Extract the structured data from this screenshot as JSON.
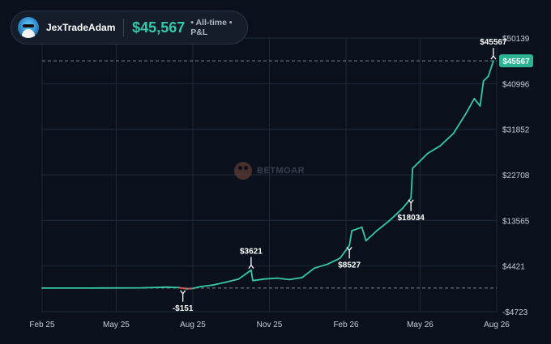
{
  "header": {
    "username": "JexTradeAdam",
    "pnl_value": "$45,567",
    "pnl_label": "• All-time • P&L"
  },
  "watermark": {
    "text": "BETMOAR"
  },
  "colors": {
    "background": "#0b111c",
    "line": "#35c9a8",
    "negative_line": "#d9534f",
    "grid": "#1e2a3a",
    "text": "#c6cdd8",
    "badge": "#2bb394"
  },
  "chart_data": {
    "type": "line",
    "title": "",
    "xlabel": "",
    "ylabel": "",
    "x_ticks": [
      "Feb 25",
      "May 25",
      "Aug 25",
      "Nov 25",
      "Feb 26",
      "May 26",
      "Aug 26"
    ],
    "y_ticks": [
      -4723,
      4421,
      13565,
      22708,
      31852,
      40996,
      50139
    ],
    "ylim": [
      -4723,
      50139
    ],
    "xlim": [
      "2025-02-01",
      "2026-08-01"
    ],
    "grid": true,
    "reference_lines": [
      {
        "label": "zero",
        "value": 0
      },
      {
        "label": "current",
        "value": 45567
      }
    ],
    "current_value_badge": "$45567",
    "annotations": [
      {
        "label": "-$151",
        "x": "2025-07-20",
        "y": -151,
        "direction": "down"
      },
      {
        "label": "$3621",
        "x": "2025-10-10",
        "y": 3621,
        "direction": "up"
      },
      {
        "label": "$8527",
        "x": "2026-02-05",
        "y": 8527,
        "direction": "down"
      },
      {
        "label": "$18034",
        "x": "2026-04-20",
        "y": 18034,
        "direction": "down"
      },
      {
        "label": "$45567",
        "x": "2026-07-28",
        "y": 45567,
        "direction": "up"
      }
    ],
    "series": [
      {
        "points": [
          [
            "2025-02-01",
            0
          ],
          [
            "2025-04-01",
            0
          ],
          [
            "2025-06-01",
            50
          ],
          [
            "2025-07-01",
            200
          ],
          [
            "2025-07-15",
            100
          ],
          [
            "2025-07-25",
            -151
          ],
          [
            "2025-08-01",
            -80
          ],
          [
            "2025-08-10",
            300
          ],
          [
            "2025-08-25",
            600
          ],
          [
            "2025-09-10",
            1200
          ],
          [
            "2025-09-25",
            1800
          ],
          [
            "2025-10-05",
            3000
          ],
          [
            "2025-10-10",
            3621
          ],
          [
            "2025-10-12",
            1500
          ],
          [
            "2025-10-25",
            1800
          ],
          [
            "2025-11-10",
            2000
          ],
          [
            "2025-11-25",
            1700
          ],
          [
            "2025-12-10",
            2100
          ],
          [
            "2025-12-25",
            4000
          ],
          [
            "2026-01-10",
            4800
          ],
          [
            "2026-01-25",
            6000
          ],
          [
            "2026-02-05",
            8527
          ],
          [
            "2026-02-08",
            11500
          ],
          [
            "2026-02-20",
            12200
          ],
          [
            "2026-02-25",
            9500
          ],
          [
            "2026-03-10",
            11500
          ],
          [
            "2026-03-25",
            13500
          ],
          [
            "2026-04-10",
            16000
          ],
          [
            "2026-04-20",
            18034
          ],
          [
            "2026-04-22",
            24000
          ],
          [
            "2026-05-10",
            27000
          ],
          [
            "2026-05-25",
            28500
          ],
          [
            "2026-06-10",
            31000
          ],
          [
            "2026-06-25",
            35000
          ],
          [
            "2026-07-05",
            38000
          ],
          [
            "2026-07-12",
            36500
          ],
          [
            "2026-07-16",
            41500
          ],
          [
            "2026-07-22",
            42500
          ],
          [
            "2026-07-28",
            45567
          ]
        ]
      }
    ]
  }
}
